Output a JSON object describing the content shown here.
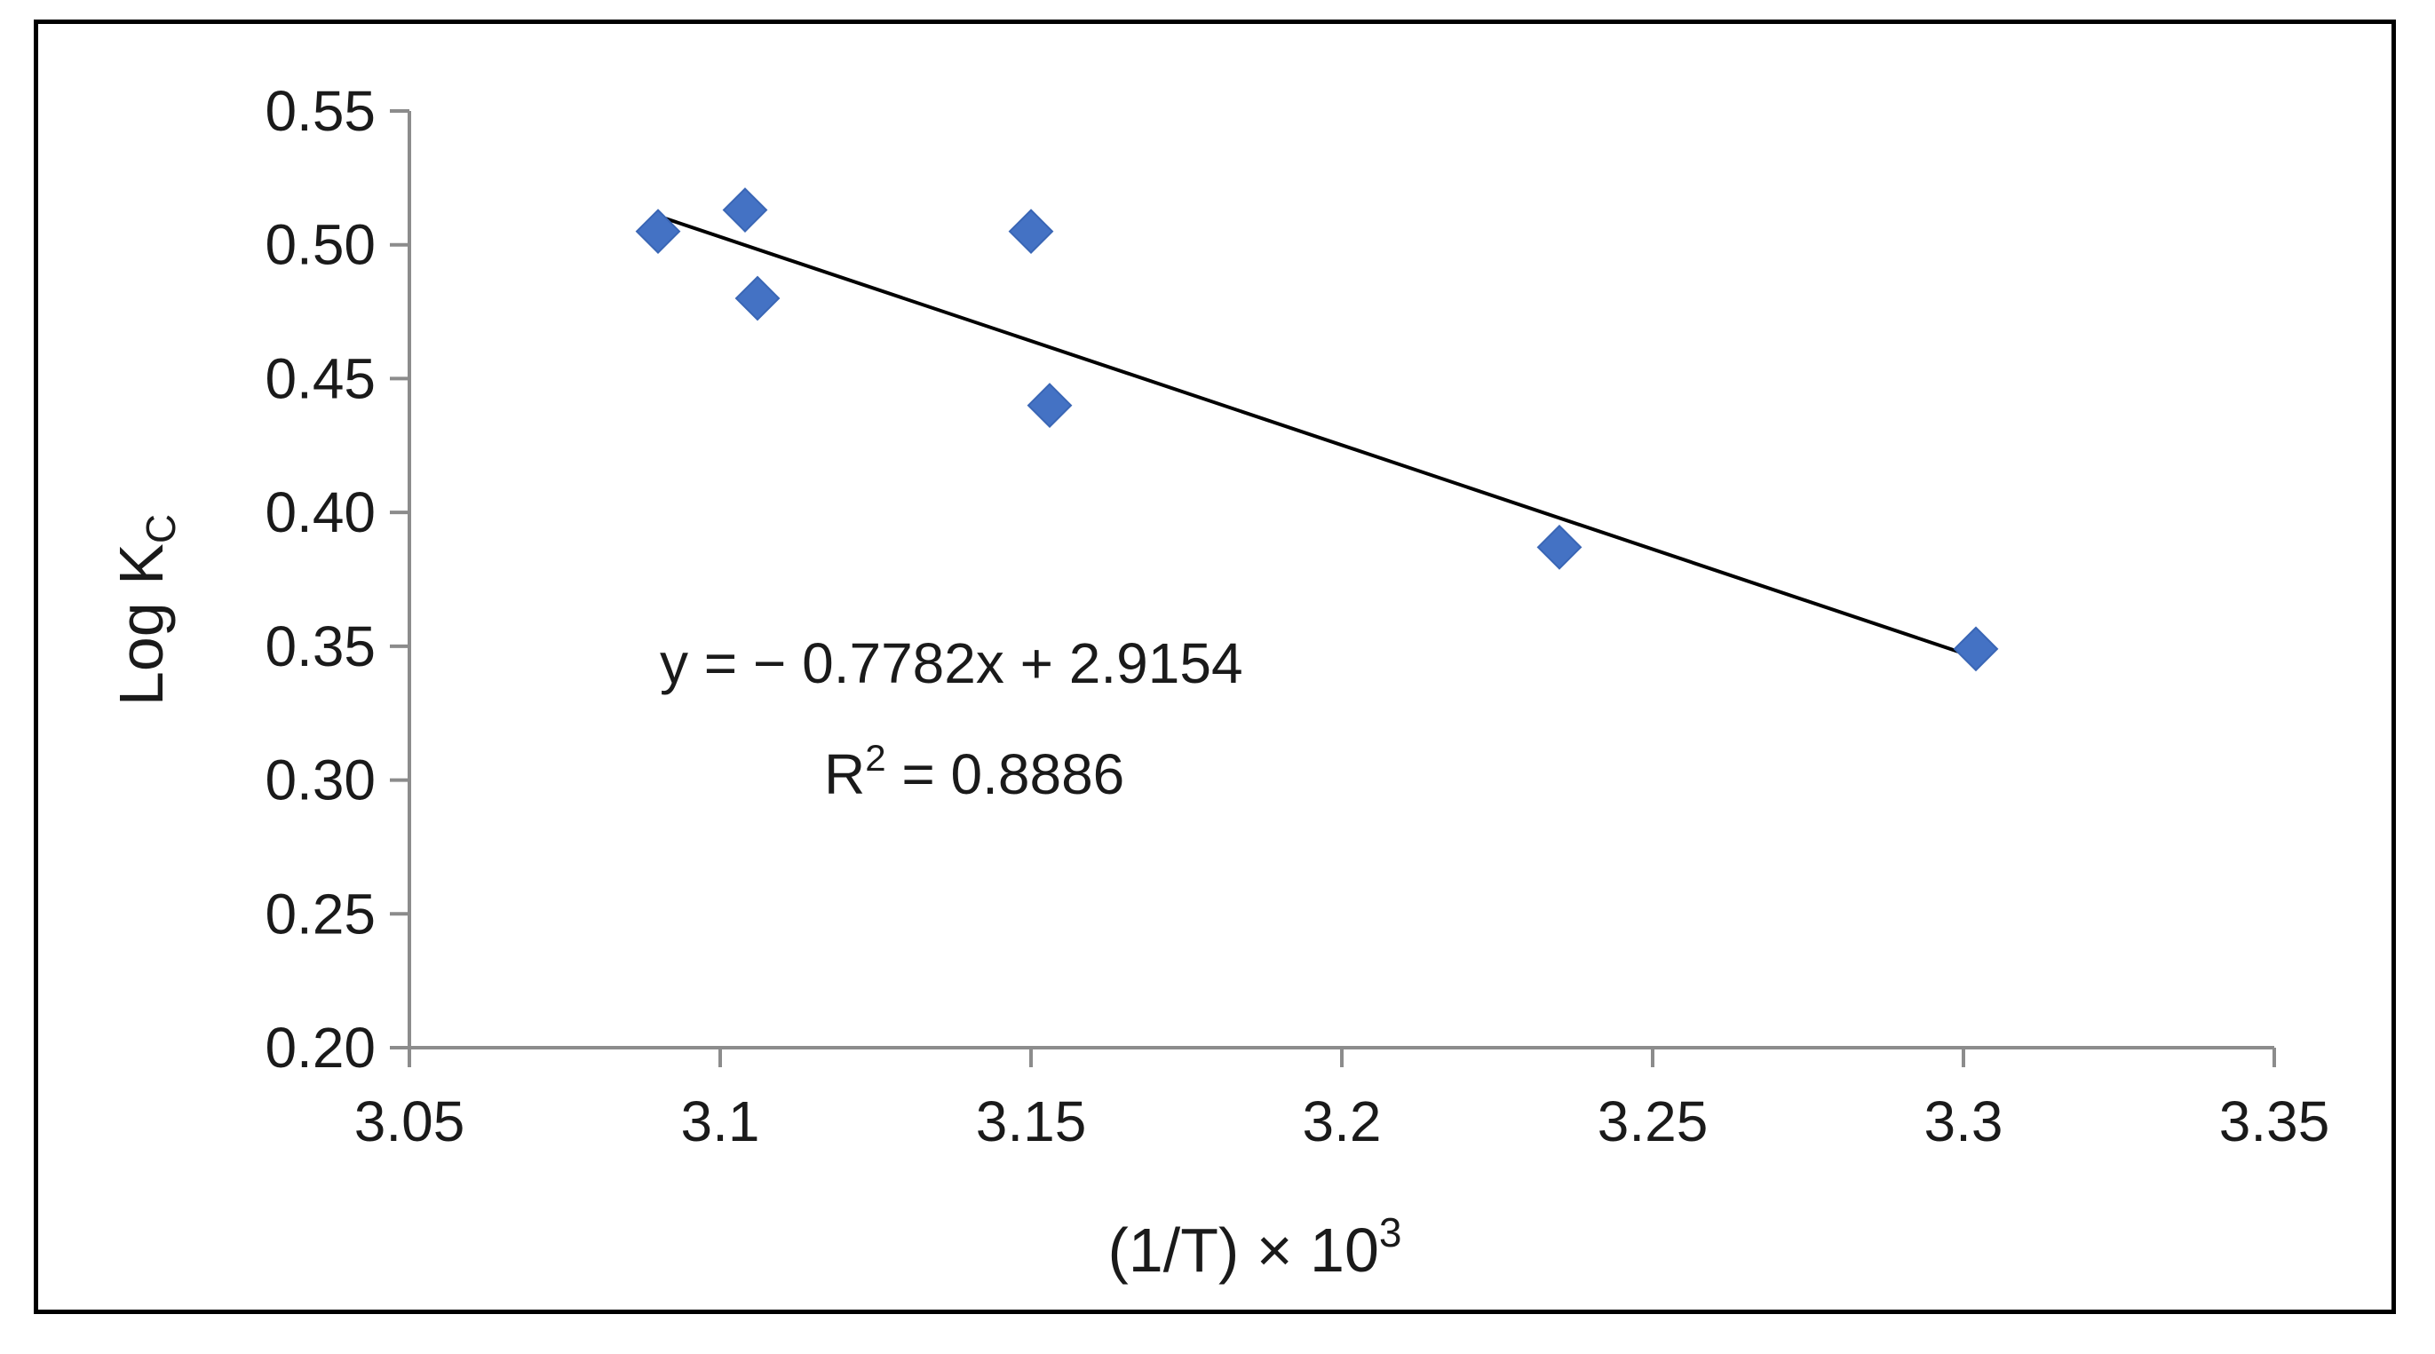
{
  "chart_data": {
    "type": "scatter",
    "xlabel_main": "(1/T) × 10",
    "xlabel_sup": "3",
    "ylabel_main": "Log K",
    "ylabel_sub": "C",
    "xlim": [
      3.05,
      3.35
    ],
    "ylim": [
      0.2,
      0.55
    ],
    "x_ticks": [
      "3.05",
      "3.1",
      "3.15",
      "3.2",
      "3.25",
      "3.3",
      "3.35"
    ],
    "y_ticks": [
      "0.20",
      "0.25",
      "0.30",
      "0.35",
      "0.40",
      "0.45",
      "0.50",
      "0.55"
    ],
    "grid": false,
    "marker": "diamond",
    "marker_color": "#4472C4",
    "trendline_color": "#000000",
    "points": [
      {
        "x": 3.09,
        "y": 0.505
      },
      {
        "x": 3.104,
        "y": 0.513
      },
      {
        "x": 3.106,
        "y": 0.48
      },
      {
        "x": 3.15,
        "y": 0.505
      },
      {
        "x": 3.153,
        "y": 0.44
      },
      {
        "x": 3.235,
        "y": 0.387
      },
      {
        "x": 3.302,
        "y": 0.349
      }
    ],
    "trendline": {
      "slope": -0.7782,
      "intercept": 2.9154,
      "x_range": [
        3.09,
        3.302
      ]
    },
    "equation_label": "y = − 0.7782x + 2.9154",
    "r2_label_main": "R",
    "r2_label_sup": "2",
    "r2_label_rest": " = 0.8886"
  }
}
